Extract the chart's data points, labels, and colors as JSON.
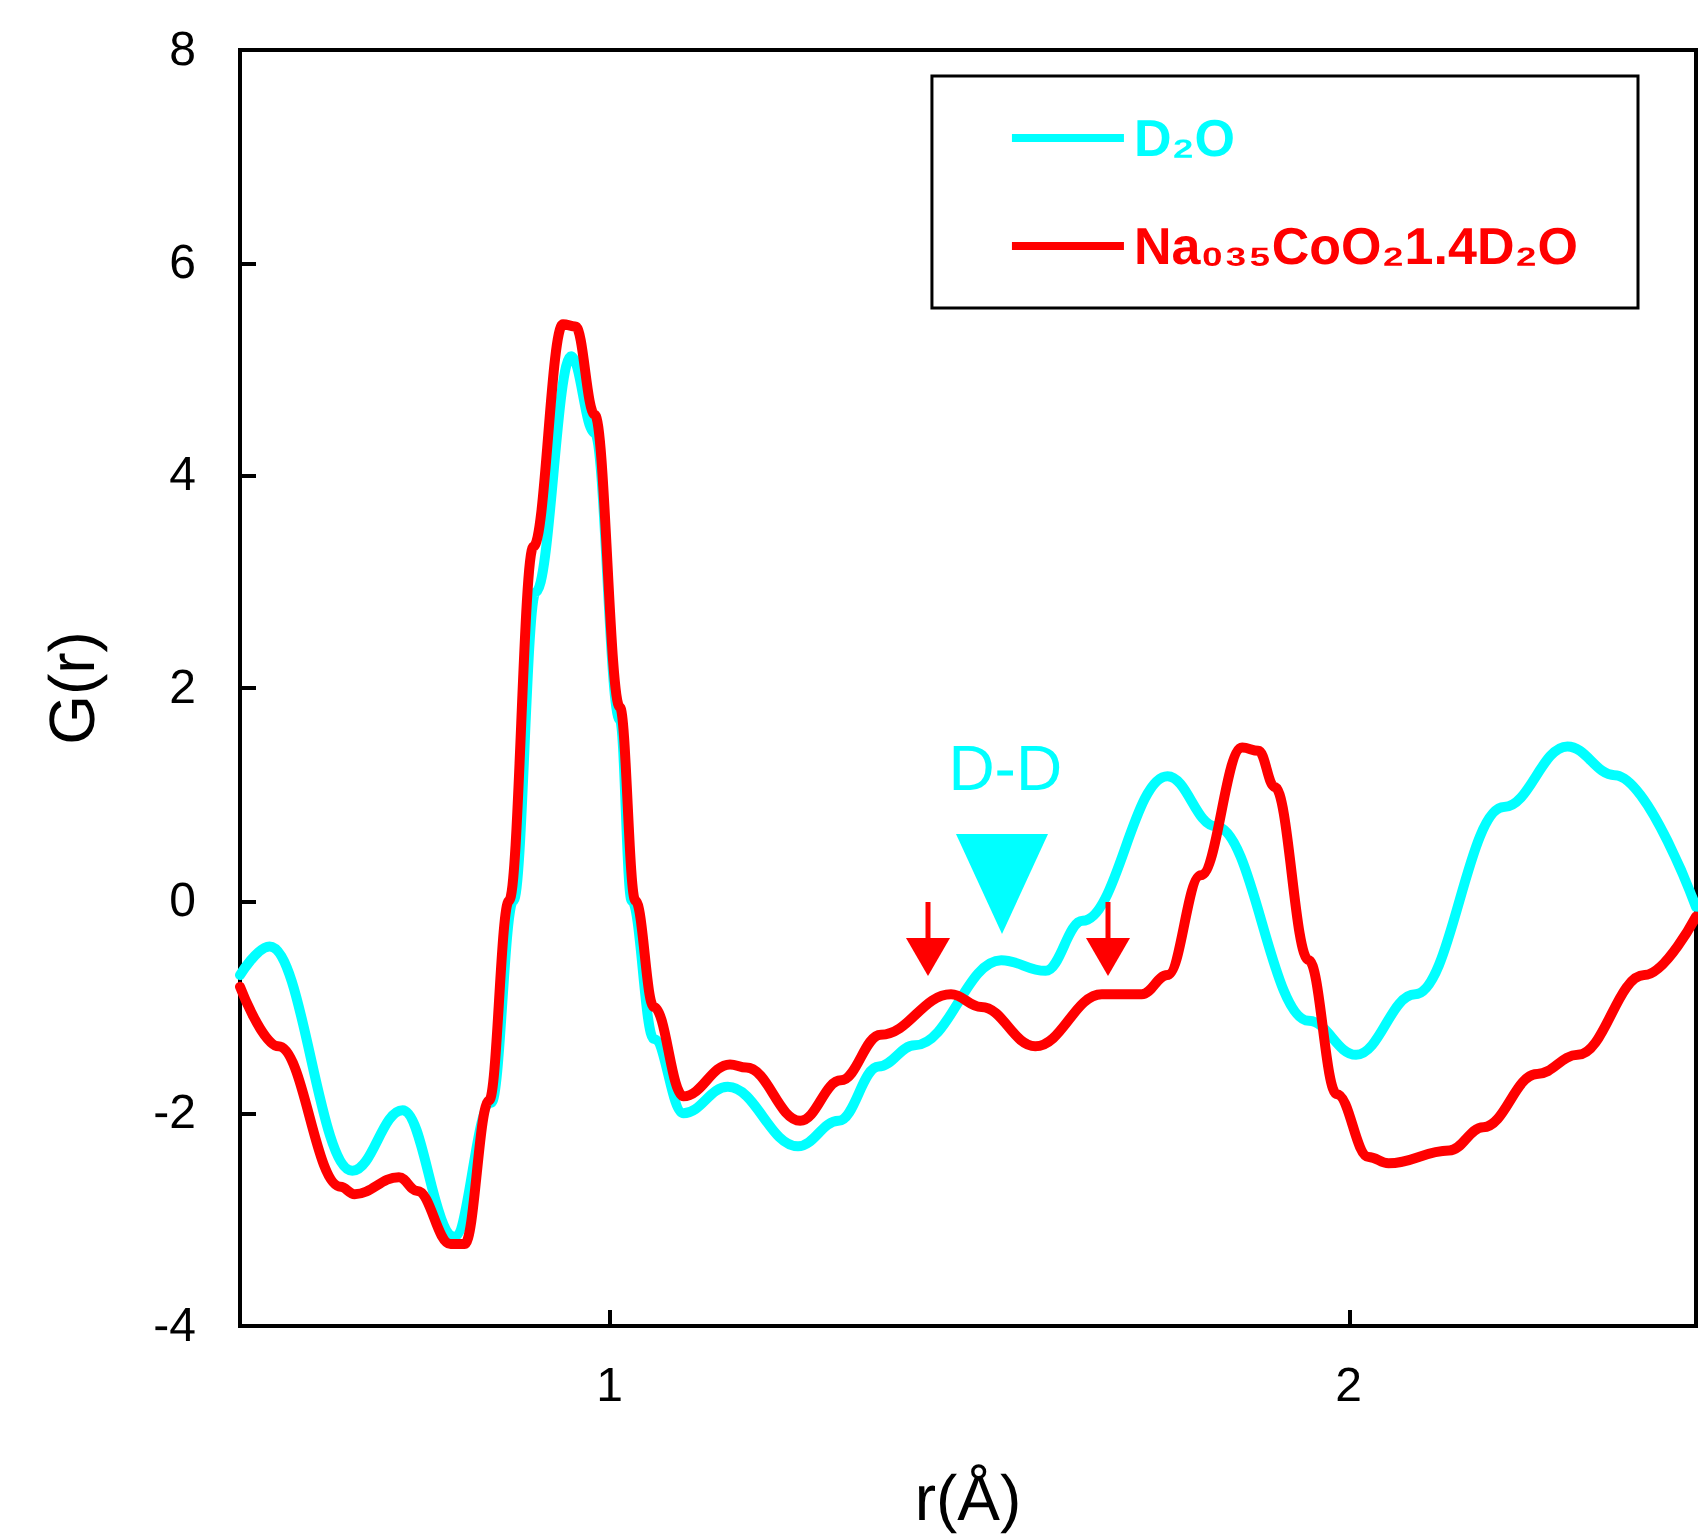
{
  "chart_data": {
    "type": "line",
    "xlabel": "r(Å)",
    "ylabel": "G(r)",
    "xlim": [
      0.5,
      2.47
    ],
    "xticks": [
      1,
      2
    ],
    "ylim": [
      -4,
      8
    ],
    "yticks": [
      -4,
      -2,
      0,
      2,
      4,
      6,
      8
    ],
    "grid": false,
    "legend": "top right",
    "marker": "none",
    "line_style": "solid",
    "annotations": [
      {
        "text": "D-D",
        "x": 1.53,
        "y": -0.56
      }
    ],
    "series": [
      {
        "name": "D₂O",
        "color": "#00ffff",
        "x": [
          0.5,
          0.54,
          0.652,
          0.72,
          0.79,
          0.84,
          0.87,
          0.9,
          0.948,
          0.98,
          1.014,
          1.03,
          1.06,
          1.1,
          1.16,
          1.255,
          1.31,
          1.364,
          1.413,
          1.53,
          1.59,
          1.64,
          1.755,
          1.82,
          1.946,
          2.01,
          2.09,
          2.21,
          2.296,
          2.36,
          2.47
        ],
        "values": [
          -0.7,
          -0.43,
          -2.54,
          -1.97,
          -3.16,
          -1.9,
          0,
          2.9,
          5.12,
          4.4,
          1.7,
          0,
          -1.3,
          -2.0,
          -1.75,
          -2.31,
          -2.07,
          -1.56,
          -1.36,
          -0.56,
          -0.66,
          -0.19,
          1.17,
          0.7,
          -1.13,
          -1.45,
          -0.88,
          0.88,
          1.45,
          1.18,
          -0.06
        ]
      },
      {
        "name": "Na₀₃₅CoO₂1.4D₂O",
        "color": "#ff0000",
        "x": [
          0.5,
          0.552,
          0.636,
          0.655,
          0.715,
          0.74,
          0.785,
          0.804,
          0.837,
          0.864,
          0.897,
          0.937,
          0.954,
          0.98,
          1.014,
          1.035,
          1.06,
          1.1,
          1.163,
          1.185,
          1.258,
          1.313,
          1.367,
          1.462,
          1.503,
          1.576,
          1.666,
          1.72,
          1.755,
          1.8,
          1.856,
          1.878,
          1.9,
          1.946,
          1.984,
          2.027,
          2.054,
          2.136,
          2.182,
          2.255,
          2.31,
          2.4,
          2.47
        ],
        "values": [
          -0.81,
          -1.37,
          -2.69,
          -2.76,
          -2.6,
          -2.73,
          -3.23,
          -3.23,
          -1.88,
          0,
          3.33,
          5.42,
          5.4,
          4.57,
          1.82,
          0,
          -1.0,
          -1.84,
          -1.54,
          -1.57,
          -2.07,
          -1.69,
          -1.26,
          -0.88,
          -1.0,
          -1.37,
          -0.88,
          -0.88,
          -0.7,
          0.24,
          1.44,
          1.41,
          1.07,
          -0.56,
          -1.82,
          -2.41,
          -2.47,
          -2.35,
          -2.13,
          -1.63,
          -1.45,
          -0.7,
          -0.15
        ]
      }
    ]
  }
}
